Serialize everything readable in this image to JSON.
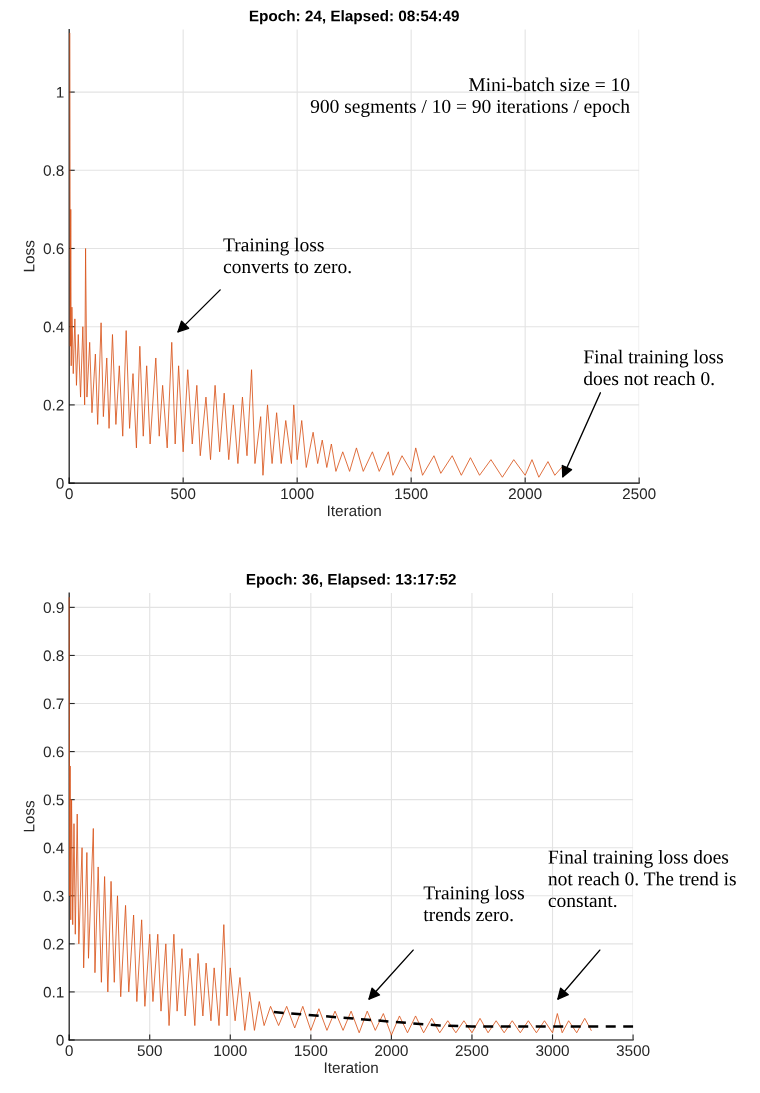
{
  "chart_data": [
    {
      "type": "line",
      "title": "Epoch: 24, Elapsed: 08:54:49",
      "xlabel": "Iteration",
      "ylabel": "Loss",
      "xlim": [
        0,
        2500
      ],
      "xticks": [
        0,
        500,
        1000,
        1500,
        2000,
        2500
      ],
      "ylim": [
        0,
        1.16
      ],
      "yticks": [
        0,
        0.2,
        0.4,
        0.6,
        0.8,
        1
      ],
      "grid": true,
      "annotations": [
        "Mini-batch size = 10\n900 segments / 10 = 90 iterations / epoch",
        "Training loss\nconverts to zero.",
        "Final training loss\ndoes not reach 0."
      ],
      "series": [
        {
          "color": "#d95319",
          "x": [
            3,
            5,
            7,
            9,
            12,
            18,
            25,
            32,
            40,
            50,
            60,
            68,
            72,
            78,
            90,
            100,
            115,
            125,
            140,
            150,
            165,
            175,
            190,
            205,
            220,
            235,
            250,
            265,
            280,
            295,
            310,
            325,
            340,
            355,
            380,
            395,
            410,
            430,
            450,
            465,
            480,
            500,
            520,
            540,
            560,
            575,
            600,
            620,
            640,
            660,
            680,
            700,
            720,
            740,
            760,
            780,
            800,
            815,
            840,
            850,
            870,
            890,
            910,
            930,
            950,
            975,
            985,
            1000,
            1020,
            1040,
            1070,
            1090,
            1110,
            1130,
            1150,
            1170,
            1200,
            1230,
            1260,
            1290,
            1330,
            1360,
            1400,
            1420,
            1460,
            1500,
            1520,
            1550,
            1600,
            1630,
            1680,
            1720,
            1760,
            1800,
            1850,
            1900,
            1950,
            2000,
            2030,
            2060,
            2100,
            2130,
            2160
          ],
          "values": [
            1.15,
            0.35,
            0.7,
            0.3,
            0.45,
            0.28,
            0.42,
            0.25,
            0.38,
            0.22,
            0.4,
            0.2,
            0.6,
            0.22,
            0.36,
            0.18,
            0.33,
            0.15,
            0.41,
            0.17,
            0.32,
            0.14,
            0.38,
            0.15,
            0.3,
            0.12,
            0.39,
            0.14,
            0.28,
            0.09,
            0.35,
            0.12,
            0.3,
            0.1,
            0.32,
            0.12,
            0.25,
            0.09,
            0.36,
            0.1,
            0.3,
            0.08,
            0.29,
            0.1,
            0.25,
            0.07,
            0.22,
            0.06,
            0.25,
            0.08,
            0.23,
            0.06,
            0.2,
            0.05,
            0.22,
            0.07,
            0.29,
            0.05,
            0.17,
            0.02,
            0.2,
            0.05,
            0.18,
            0.05,
            0.16,
            0.05,
            0.2,
            0.06,
            0.16,
            0.04,
            0.13,
            0.05,
            0.11,
            0.04,
            0.1,
            0.03,
            0.08,
            0.03,
            0.09,
            0.03,
            0.08,
            0.03,
            0.08,
            0.02,
            0.07,
            0.03,
            0.09,
            0.02,
            0.07,
            0.025,
            0.07,
            0.02,
            0.065,
            0.02,
            0.06,
            0.015,
            0.06,
            0.02,
            0.06,
            0.015,
            0.055,
            0.02,
            0.04
          ]
        }
      ]
    },
    {
      "type": "line",
      "title": "Epoch: 36, Elapsed: 13:17:52",
      "xlabel": "Iteration",
      "ylabel": "Loss",
      "xlim": [
        0,
        3500
      ],
      "xticks": [
        0,
        500,
        1000,
        1500,
        2000,
        2500,
        3000,
        3500
      ],
      "ylim": [
        0,
        0.93
      ],
      "yticks": [
        0,
        0.1,
        0.2,
        0.3,
        0.4,
        0.5,
        0.6,
        0.7,
        0.8,
        0.9
      ],
      "grid": true,
      "annotations": [
        "Training loss\ntrends zero.",
        "Final training loss does\nnot reach 0. The trend is\nconstant."
      ],
      "series": [
        {
          "color": "#d95319",
          "x": [
            0,
            3,
            6,
            10,
            15,
            22,
            30,
            38,
            50,
            60,
            80,
            90,
            110,
            120,
            150,
            160,
            180,
            200,
            220,
            240,
            260,
            280,
            300,
            320,
            350,
            370,
            400,
            420,
            450,
            470,
            500,
            520,
            550,
            570,
            600,
            620,
            650,
            670,
            700,
            720,
            750,
            780,
            800,
            830,
            850,
            880,
            900,
            930,
            960,
            980,
            1000,
            1030,
            1060,
            1090,
            1120,
            1150,
            1180,
            1210,
            1250,
            1300,
            1350,
            1400,
            1450,
            1500,
            1550,
            1600,
            1650,
            1700,
            1750,
            1800,
            1850,
            1900,
            1950,
            2000,
            2050,
            2100,
            2150,
            2200,
            2250,
            2300,
            2350,
            2400,
            2450,
            2500,
            2550,
            2600,
            2650,
            2700,
            2750,
            2800,
            2850,
            2900,
            2950,
            3000,
            3030,
            3060,
            3100,
            3150,
            3200,
            3240
          ],
          "values": [
            0.92,
            0.3,
            0.57,
            0.25,
            0.5,
            0.24,
            0.45,
            0.22,
            0.47,
            0.2,
            0.4,
            0.15,
            0.39,
            0.17,
            0.44,
            0.14,
            0.36,
            0.12,
            0.34,
            0.1,
            0.33,
            0.12,
            0.3,
            0.09,
            0.28,
            0.1,
            0.26,
            0.08,
            0.25,
            0.07,
            0.22,
            0.08,
            0.22,
            0.06,
            0.2,
            0.03,
            0.22,
            0.06,
            0.19,
            0.05,
            0.17,
            0.03,
            0.18,
            0.05,
            0.16,
            0.04,
            0.15,
            0.03,
            0.24,
            0.05,
            0.15,
            0.04,
            0.13,
            0.02,
            0.1,
            0.02,
            0.08,
            0.03,
            0.07,
            0.03,
            0.07,
            0.025,
            0.07,
            0.02,
            0.065,
            0.02,
            0.06,
            0.02,
            0.06,
            0.015,
            0.06,
            0.02,
            0.055,
            0.01,
            0.05,
            0.015,
            0.05,
            0.015,
            0.045,
            0.015,
            0.04,
            0.015,
            0.04,
            0.015,
            0.045,
            0.015,
            0.04,
            0.015,
            0.04,
            0.015,
            0.04,
            0.015,
            0.04,
            0.015,
            0.055,
            0.015,
            0.04,
            0.015,
            0.045,
            0.02
          ]
        },
        {
          "color": "#000000",
          "line_style": "dashed",
          "x": [
            1270,
            2300,
            2500,
            3500
          ],
          "values": [
            0.058,
            0.03,
            0.028,
            0.028
          ]
        }
      ]
    }
  ]
}
